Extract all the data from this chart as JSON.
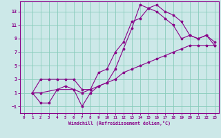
{
  "xlabel": "Windchill (Refroidissement éolien,°C)",
  "bg_color": "#cce8e8",
  "line_color": "#880088",
  "grid_color": "#88ccbb",
  "axis_color": "#880088",
  "xlim": [
    -0.5,
    23.5
  ],
  "ylim": [
    -2.0,
    14.5
  ],
  "xticks": [
    0,
    1,
    2,
    3,
    4,
    5,
    6,
    7,
    8,
    9,
    10,
    11,
    12,
    13,
    14,
    15,
    16,
    17,
    18,
    19,
    20,
    21,
    22,
    23
  ],
  "yticks": [
    -1,
    1,
    3,
    5,
    7,
    9,
    11,
    13
  ],
  "line1_x": [
    1,
    2,
    3,
    4,
    5,
    6,
    7,
    8,
    9,
    10,
    11,
    12,
    13,
    14,
    15,
    16,
    17,
    18,
    19,
    20,
    21,
    22,
    23
  ],
  "line1_y": [
    1,
    3,
    3,
    3,
    3,
    3,
    1.5,
    1.5,
    4,
    4.5,
    7,
    8.5,
    11.5,
    12,
    13.5,
    14,
    13,
    12.5,
    11.5,
    9.5,
    9,
    9.5,
    8.5
  ],
  "line2_x": [
    1,
    2,
    3,
    4,
    5,
    6,
    7,
    8,
    9,
    10,
    11,
    12,
    13,
    14,
    15,
    16,
    17,
    18,
    19,
    20,
    21,
    22,
    23
  ],
  "line2_y": [
    1,
    -0.5,
    -0.5,
    1.5,
    2,
    1.5,
    -1,
    1,
    2,
    2.5,
    4.5,
    7.5,
    10.5,
    14,
    13.5,
    13,
    12,
    11,
    9,
    9.5,
    9,
    9.5,
    8
  ],
  "line3_x": [
    1,
    2,
    4,
    6,
    7,
    8,
    9,
    10,
    11,
    12,
    13,
    14,
    15,
    16,
    17,
    18,
    19,
    20,
    21,
    22,
    23
  ],
  "line3_y": [
    1,
    1,
    1.5,
    1.5,
    1,
    1.5,
    2,
    2.5,
    3,
    4,
    4.5,
    5,
    5.5,
    6,
    6.5,
    7,
    7.5,
    8,
    8,
    8,
    8
  ]
}
